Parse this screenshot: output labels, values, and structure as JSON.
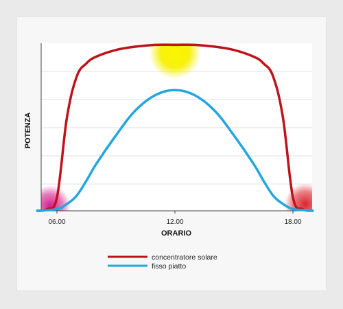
{
  "chart_data": {
    "type": "line",
    "xlabel": "ORARIO",
    "ylabel": "POTENZA",
    "x_ticks": [
      "06.00",
      "12.00",
      "18.00"
    ],
    "grid": true,
    "legend_placement": "bottom",
    "series": [
      {
        "name": "concentratore solare",
        "color": "#c0121a",
        "x": [
          "05.00",
          "05.30",
          "06.00",
          "06.30",
          "07.00",
          "07.30",
          "08.00",
          "09.00",
          "10.00",
          "11.00",
          "12.00",
          "13.00",
          "14.00",
          "15.00",
          "16.00",
          "16.30",
          "17.00",
          "17.30",
          "18.00",
          "18.30",
          "19.00"
        ],
        "values": [
          0,
          1,
          8,
          55,
          80,
          88,
          92,
          96,
          98,
          99,
          99,
          99,
          98,
          96,
          92,
          88,
          80,
          55,
          8,
          1,
          0
        ]
      },
      {
        "name": "fisso piatto",
        "color": "#23a6e0",
        "x": [
          "05.00",
          "06.00",
          "06.30",
          "07.00",
          "07.30",
          "08.00",
          "09.00",
          "10.00",
          "11.00",
          "12.00",
          "13.00",
          "14.00",
          "15.00",
          "16.00",
          "16.30",
          "17.00",
          "17.30",
          "18.00",
          "18.30",
          "19.00"
        ],
        "values": [
          0,
          1,
          4,
          9,
          18,
          28,
          45,
          60,
          69,
          72,
          69,
          60,
          45,
          28,
          18,
          9,
          4,
          1,
          0.5,
          0
        ]
      }
    ]
  },
  "decorations": {
    "sun_color": "#f5f000",
    "sunrise_glow_color": "#d0148a",
    "sunset_glow_color": "#d81a22"
  }
}
